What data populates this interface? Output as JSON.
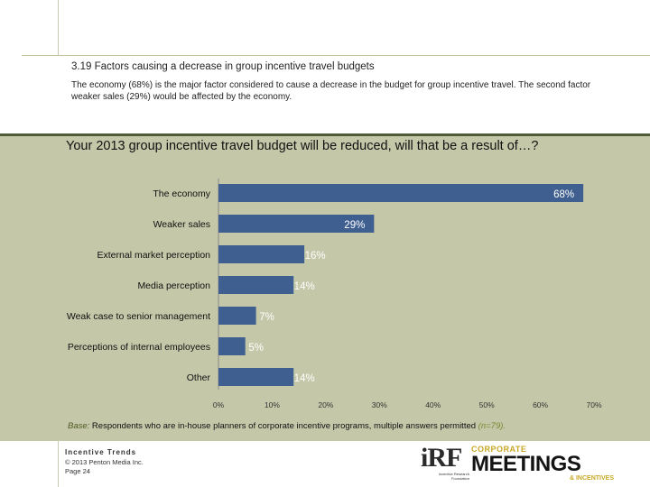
{
  "header": {
    "section_title": "3.19 Factors causing a decrease in group incentive travel budgets",
    "intro": "The economy (68%) is the major factor considered to cause a decrease in the budget for group incentive travel. The second factor weaker sales (29%) would be affected by the economy."
  },
  "chart_data": {
    "type": "bar",
    "orientation": "horizontal",
    "title": "Your 2013 group incentive travel budget will be reduced, will that be a result of…?",
    "categories": [
      "The economy",
      "Weaker sales",
      "External market perception",
      "Media perception",
      "Weak case to senior management",
      "Perceptions of internal employees",
      "Other"
    ],
    "values": [
      68,
      29,
      16,
      14,
      7,
      5,
      14
    ],
    "value_labels": [
      "68%",
      "29%",
      "16%",
      "14%",
      "7%",
      "5%",
      "14%"
    ],
    "xlim": [
      0,
      70
    ],
    "xticks": [
      0,
      10,
      20,
      30,
      40,
      50,
      60,
      70
    ],
    "xtick_labels": [
      "0%",
      "10%",
      "20%",
      "30%",
      "40%",
      "50%",
      "60%",
      "70%"
    ],
    "bar_color": "#3e5f8f",
    "label_color": "#ffffff"
  },
  "base_note": {
    "label": "Base:",
    "text": " Respondents who are in-house planners of corporate incentive programs, multiple answers permitted ",
    "n": "(n=79)."
  },
  "footer": {
    "brand": "Incentive Trends",
    "copyright": "© 2013 Penton Media Inc.",
    "page_label": "Page",
    "page_number": "24",
    "irf_logo": "iRF",
    "irf_tagline": "Incentive Research Foundation",
    "cm_top": "CORPORATE",
    "cm_main": "MEETINGS",
    "cm_bottom": "& INCENTIVES"
  },
  "colors": {
    "panel_bg": "#c4c7a8",
    "panel_border": "#4e5a38",
    "accent_gold": "#c8a826"
  }
}
